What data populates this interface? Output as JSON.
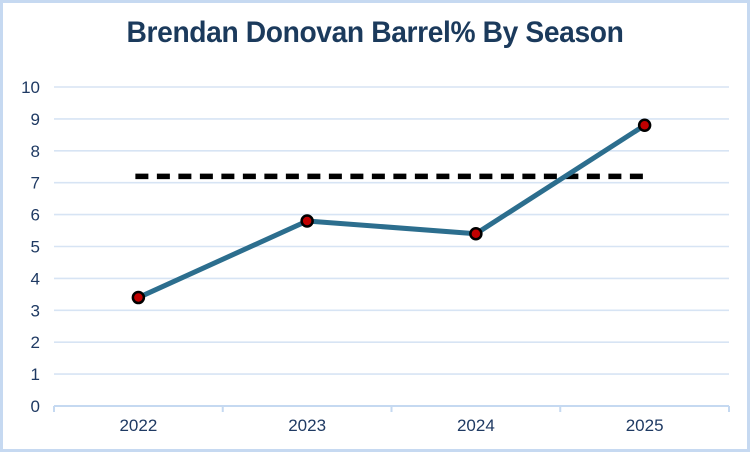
{
  "title": "Brendan Donovan Barrel% By Season",
  "colors": {
    "title_text": "#1b3a5c",
    "axis_text": "#1f3a63",
    "gridline": "#d7e4f4",
    "axis_line": "#c5d9f1",
    "frame_border": "#c6d9f1",
    "series_line": "#2c6e8e",
    "marker_fill": "#c00000",
    "marker_stroke": "#000000",
    "reference_line": "#000000",
    "background": "#ffffff"
  },
  "chart_data": {
    "type": "line",
    "title": "Brendan Donovan Barrel% By Season",
    "categories": [
      "2022",
      "2023",
      "2024",
      "2025"
    ],
    "series": [
      {
        "name": "Barrel%",
        "values": [
          3.4,
          5.8,
          5.4,
          8.8
        ]
      }
    ],
    "reference_line": {
      "value": 7.2,
      "style": "dashed"
    },
    "xlabel": "",
    "ylabel": "",
    "ylim": [
      0,
      10
    ],
    "ytick_step": 1,
    "grid": true,
    "legend": false
  }
}
